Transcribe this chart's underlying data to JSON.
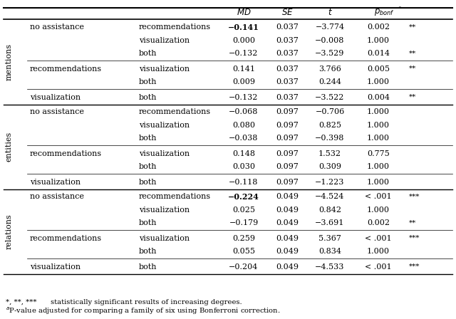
{
  "sections": [
    {
      "label": "mentions",
      "groups": [
        {
          "group": "no assistance",
          "rows": [
            {
              "comparison": "recommendations",
              "MD": "−0.141",
              "SE": "0.037",
              "t": "−3.774",
              "p": "0.002",
              "sig": "**",
              "bold_MD": true
            },
            {
              "comparison": "visualization",
              "MD": "0.000",
              "SE": "0.037",
              "t": "−0.008",
              "p": "1.000",
              "sig": "",
              "bold_MD": false
            },
            {
              "comparison": "both",
              "MD": "−0.132",
              "SE": "0.037",
              "t": "−3.529",
              "p": "0.014",
              "sig": "**",
              "bold_MD": false
            }
          ]
        },
        {
          "group": "recommendations",
          "rows": [
            {
              "comparison": "visualization",
              "MD": "0.141",
              "SE": "0.037",
              "t": "3.766",
              "p": "0.005",
              "sig": "**",
              "bold_MD": false
            },
            {
              "comparison": "both",
              "MD": "0.009",
              "SE": "0.037",
              "t": "0.244",
              "p": "1.000",
              "sig": "",
              "bold_MD": false
            }
          ]
        },
        {
          "group": "visualization",
          "rows": [
            {
              "comparison": "both",
              "MD": "−0.132",
              "SE": "0.037",
              "t": "−3.522",
              "p": "0.004",
              "sig": "**",
              "bold_MD": false
            }
          ]
        }
      ]
    },
    {
      "label": "entities",
      "groups": [
        {
          "group": "no assistance",
          "rows": [
            {
              "comparison": "recommendations",
              "MD": "−0.068",
              "SE": "0.097",
              "t": "−0.706",
              "p": "1.000",
              "sig": "",
              "bold_MD": false
            },
            {
              "comparison": "visualization",
              "MD": "0.080",
              "SE": "0.097",
              "t": "0.825",
              "p": "1.000",
              "sig": "",
              "bold_MD": false
            },
            {
              "comparison": "both",
              "MD": "−0.038",
              "SE": "0.097",
              "t": "−0.398",
              "p": "1.000",
              "sig": "",
              "bold_MD": false
            }
          ]
        },
        {
          "group": "recommendations",
          "rows": [
            {
              "comparison": "visualization",
              "MD": "0.148",
              "SE": "0.097",
              "t": "1.532",
              "p": "0.775",
              "sig": "",
              "bold_MD": false
            },
            {
              "comparison": "both",
              "MD": "0.030",
              "SE": "0.097",
              "t": "0.309",
              "p": "1.000",
              "sig": "",
              "bold_MD": false
            }
          ]
        },
        {
          "group": "visualization",
          "rows": [
            {
              "comparison": "both",
              "MD": "−0.118",
              "SE": "0.097",
              "t": "−1.223",
              "p": "1.000",
              "sig": "",
              "bold_MD": false
            }
          ]
        }
      ]
    },
    {
      "label": "relations",
      "groups": [
        {
          "group": "no assistance",
          "rows": [
            {
              "comparison": "recommendations",
              "MD": "−0.224",
              "SE": "0.049",
              "t": "−4.524",
              "p": "< .001",
              "sig": "***",
              "bold_MD": true
            },
            {
              "comparison": "visualization",
              "MD": "0.025",
              "SE": "0.049",
              "t": "0.842",
              "p": "1.000",
              "sig": "",
              "bold_MD": false
            },
            {
              "comparison": "both",
              "MD": "−0.179",
              "SE": "0.049",
              "t": "−3.691",
              "p": "0.002",
              "sig": "**",
              "bold_MD": false
            }
          ]
        },
        {
          "group": "recommendations",
          "rows": [
            {
              "comparison": "visualization",
              "MD": "0.259",
              "SE": "0.049",
              "t": "5.367",
              "p": "< .001",
              "sig": "***",
              "bold_MD": false
            },
            {
              "comparison": "both",
              "MD": "0.055",
              "SE": "0.049",
              "t": "0.834",
              "p": "1.000",
              "sig": "",
              "bold_MD": false
            }
          ]
        },
        {
          "group": "visualization",
          "rows": [
            {
              "comparison": "both",
              "MD": "−0.204",
              "SE": "0.049",
              "t": "−4.533",
              "p": "< .001",
              "sig": "***",
              "bold_MD": false
            }
          ]
        }
      ]
    }
  ]
}
